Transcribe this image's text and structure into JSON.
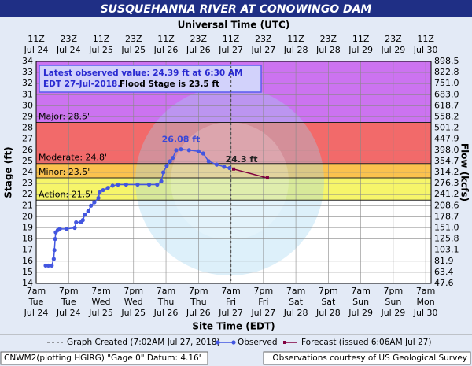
{
  "chart_data": {
    "type": "line",
    "title": "SUSQUEHANNA RIVER AT CONOWINGO DAM",
    "top_axis_label": "Universal Time (UTC)",
    "xlabel": "Site Time (EDT)",
    "ylabel": "Stage (ft)",
    "y2label": "Flow (kcfs)",
    "info_box": [
      "Latest observed value: 24.39 ft at 6:30 AM",
      "EDT 27-Jul-2018.",
      "Flood Stage is 23.5 ft"
    ],
    "xlim": [
      "Jul 24 07:00",
      "Jul 30 09:00"
    ],
    "xticks": [
      {
        "value": "Jul 24 07:00",
        "label": [
          "7am",
          "Tue",
          "Jul 24"
        ]
      },
      {
        "value": "Jul 24 19:00",
        "label": [
          "7pm",
          "Tue",
          "Jul 24"
        ]
      },
      {
        "value": "Jul 25 07:00",
        "label": [
          "7am",
          "Wed",
          "Jul 25"
        ]
      },
      {
        "value": "Jul 25 19:00",
        "label": [
          "7pm",
          "Wed",
          "Jul 25"
        ]
      },
      {
        "value": "Jul 26 07:00",
        "label": [
          "7am",
          "Thu",
          "Jul 26"
        ]
      },
      {
        "value": "Jul 26 19:00",
        "label": [
          "7pm",
          "Thu",
          "Jul 26"
        ]
      },
      {
        "value": "Jul 27 07:00",
        "label": [
          "7am",
          "Fri",
          "Jul 27"
        ]
      },
      {
        "value": "Jul 27 19:00",
        "label": [
          "7pm",
          "Fri",
          "Jul 27"
        ]
      },
      {
        "value": "Jul 28 07:00",
        "label": [
          "7am",
          "Sat",
          "Jul 28"
        ]
      },
      {
        "value": "Jul 28 19:00",
        "label": [
          "7pm",
          "Sat",
          "Jul 28"
        ]
      },
      {
        "value": "Jul 29 07:00",
        "label": [
          "7am",
          "Sun",
          "Jul 29"
        ]
      },
      {
        "value": "Jul 29 19:00",
        "label": [
          "7pm",
          "Sun",
          "Jul 29"
        ]
      },
      {
        "value": "Jul 30 07:00",
        "label": [
          "7am",
          "Mon",
          "Jul 30"
        ]
      }
    ],
    "x2ticks": [
      {
        "value": "Jul 24 07:00",
        "label": [
          "11Z",
          "Jul 24"
        ]
      },
      {
        "value": "Jul 24 19:00",
        "label": [
          "23Z",
          "Jul 24"
        ]
      },
      {
        "value": "Jul 25 07:00",
        "label": [
          "11Z",
          "Jul 25"
        ]
      },
      {
        "value": "Jul 25 19:00",
        "label": [
          "23Z",
          "Jul 25"
        ]
      },
      {
        "value": "Jul 26 07:00",
        "label": [
          "11Z",
          "Jul 26"
        ]
      },
      {
        "value": "Jul 26 19:00",
        "label": [
          "23Z",
          "Jul 26"
        ]
      },
      {
        "value": "Jul 27 07:00",
        "label": [
          "11Z",
          "Jul 27"
        ]
      },
      {
        "value": "Jul 27 19:00",
        "label": [
          "23Z",
          "Jul 27"
        ]
      },
      {
        "value": "Jul 28 07:00",
        "label": [
          "11Z",
          "Jul 28"
        ]
      },
      {
        "value": "Jul 28 19:00",
        "label": [
          "23Z",
          "Jul 28"
        ]
      },
      {
        "value": "Jul 29 07:00",
        "label": [
          "11Z",
          "Jul 29"
        ]
      },
      {
        "value": "Jul 29 19:00",
        "label": [
          "23Z",
          "Jul 29"
        ]
      },
      {
        "value": "Jul 30 07:00",
        "label": [
          "11Z",
          "Jul 30"
        ]
      }
    ],
    "ylim": [
      14,
      34
    ],
    "yticks": [
      14,
      15,
      16,
      17,
      18,
      19,
      20,
      21,
      22,
      23,
      24,
      25,
      26,
      27,
      28,
      29,
      30,
      31,
      32,
      33,
      34
    ],
    "y2ticks": [
      47.6,
      63.4,
      81.9,
      103.1,
      125.8,
      {
        "value": 151,
        "label": "151.0"
      },
      178.7,
      208.6,
      241.2,
      276.3,
      314.2,
      354.7,
      {
        "value": 398,
        "label": "398.0"
      },
      447.9,
      501.2,
      558.2,
      618.7,
      {
        "value": 683,
        "label": "683.0"
      },
      {
        "value": 751,
        "label": "751.0"
      },
      822.8,
      898.5
    ],
    "grid": true,
    "flood_categories": [
      {
        "name": "Action",
        "value": 21.5,
        "label": "Action: 21.5'",
        "color": "#f6f56a"
      },
      {
        "name": "Minor",
        "value": 23.5,
        "label": "Minor: 23.5'",
        "color": "#fbc24e"
      },
      {
        "name": "Moderate",
        "value": 24.8,
        "label": "Moderate: 24.8'",
        "color": "#f26a6a"
      },
      {
        "name": "Major",
        "value": 28.5,
        "label": "Major: 28.5'",
        "color": "#cc73f0"
      }
    ],
    "graph_created": {
      "x": "Jul 27 07:02",
      "name": "Graph Created (7:02AM Jul 27, 2018)"
    },
    "series": [
      {
        "name": "Observed",
        "color": "#4356e0",
        "x": [
          "Jul 24 10:30",
          "Jul 24 11:30",
          "Jul 24 12:45",
          "Jul 24 13:30",
          "Jul 24 13:45",
          "Jul 24 14:00",
          "Jul 24 14:15",
          "Jul 24 15:00",
          "Jul 24 15:45",
          "Jul 24 18:15",
          "Jul 24 21:15",
          "Jul 24 21:45",
          "Jul 24 23:30",
          "Jul 25 00:15",
          "Jul 25 01:00",
          "Jul 25 02:15",
          "Jul 25 03:15",
          "Jul 25 04:30",
          "Jul 25 06:00",
          "Jul 25 06:30",
          "Jul 25 07:45",
          "Jul 25 09:30",
          "Jul 25 11:15",
          "Jul 25 13:15",
          "Jul 25 16:15",
          "Jul 25 20:30",
          "Jul 26 00:45",
          "Jul 26 03:45",
          "Jul 26 05:15",
          "Jul 26 06:00",
          "Jul 26 07:15",
          "Jul 26 08:30",
          "Jul 26 09:30",
          "Jul 26 10:45",
          "Jul 26 12:30",
          "Jul 26 15:30",
          "Jul 26 19:00",
          "Jul 26 20:45",
          "Jul 26 22:45",
          "Jul 27 01:45",
          "Jul 27 04:30",
          "Jul 27 06:30"
        ],
        "values": [
          15.6,
          15.6,
          15.6,
          16.2,
          17.0,
          18.0,
          18.6,
          18.8,
          18.9,
          18.9,
          19.0,
          19.5,
          19.5,
          19.7,
          20.2,
          20.5,
          21.0,
          21.3,
          21.7,
          22.2,
          22.4,
          22.6,
          22.8,
          22.9,
          22.9,
          22.9,
          22.9,
          22.9,
          23.2,
          24.0,
          24.6,
          25.0,
          25.3,
          26.0,
          26.08,
          26.0,
          25.9,
          25.7,
          25.0,
          24.7,
          24.5,
          24.39
        ],
        "annotation": {
          "index": 34,
          "label": "26.08 ft"
        }
      },
      {
        "name": "Forecast (issued 6:06AM Jul 27)",
        "color": "#800040",
        "x": [
          "Jul 27 08:00",
          "Jul 27 20:30"
        ],
        "values": [
          24.3,
          23.5
        ],
        "annotation": {
          "index": 0,
          "label": "24.3 ft"
        }
      }
    ],
    "footer": [
      "CNWM2(plotting HGIRG) \"Gage 0\" Datum: 4.16'",
      "Observations courtesy of US Geological Survey"
    ]
  }
}
